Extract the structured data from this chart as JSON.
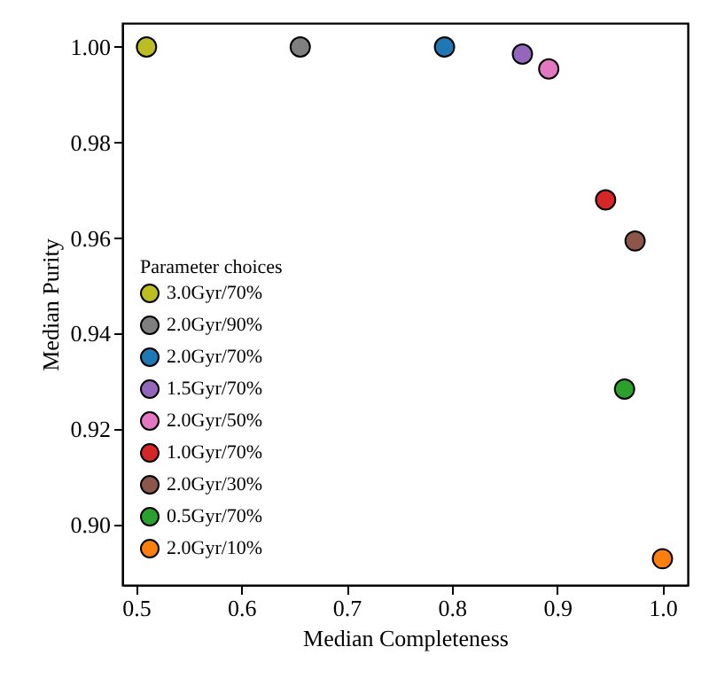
{
  "chart_data": {
    "type": "scatter",
    "xlabel": "Median Completeness",
    "ylabel": "Median Purity",
    "legend_title": "Parameter choices",
    "legend": "left",
    "grid": false,
    "marker": "circle",
    "xlim": [
      0.487,
      1.024
    ],
    "ylim": [
      0.8874,
      1.005
    ],
    "xticks": [
      {
        "value": 0.5,
        "label": "0.5"
      },
      {
        "value": 0.6,
        "label": "0.6"
      },
      {
        "value": 0.7,
        "label": "0.7"
      },
      {
        "value": 0.8,
        "label": "0.8"
      },
      {
        "value": 0.9,
        "label": "0.9"
      },
      {
        "value": 1.0,
        "label": "1.0"
      }
    ],
    "yticks": [
      {
        "value": 0.9,
        "label": "0.90"
      },
      {
        "value": 0.92,
        "label": "0.92"
      },
      {
        "value": 0.94,
        "label": "0.94"
      },
      {
        "value": 0.96,
        "label": "0.96"
      },
      {
        "value": 0.98,
        "label": "0.98"
      },
      {
        "value": 1.0,
        "label": "1.00"
      }
    ],
    "series": [
      {
        "name": "3.0Gyr/70%",
        "color": "#bcbd22",
        "x": [
          0.51
        ],
        "values": [
          1.0
        ]
      },
      {
        "name": "2.0Gyr/90%",
        "color": "#7f7f7f",
        "x": [
          0.656
        ],
        "values": [
          1.0
        ]
      },
      {
        "name": "2.0Gyr/70%",
        "color": "#1f77b4",
        "x": [
          0.793
        ],
        "values": [
          1.0
        ]
      },
      {
        "name": "1.5Gyr/70%",
        "color": "#9467bd",
        "x": [
          0.867
        ],
        "values": [
          0.9985
        ]
      },
      {
        "name": "2.0Gyr/50%",
        "color": "#e377c2",
        "x": [
          0.892
        ],
        "values": [
          0.9954
        ]
      },
      {
        "name": "1.0Gyr/70%",
        "color": "#d62728",
        "x": [
          0.946
        ],
        "values": [
          0.968
        ]
      },
      {
        "name": "2.0Gyr/30%",
        "color": "#8c564b",
        "x": [
          0.974
        ],
        "values": [
          0.9594
        ]
      },
      {
        "name": "0.5Gyr/70%",
        "color": "#2ca02c",
        "x": [
          0.964
        ],
        "values": [
          0.9284
        ]
      },
      {
        "name": "2.0Gyr/10%",
        "color": "#ff7f0e",
        "x": [
          1.0
        ],
        "values": [
          0.8929
        ]
      }
    ]
  }
}
